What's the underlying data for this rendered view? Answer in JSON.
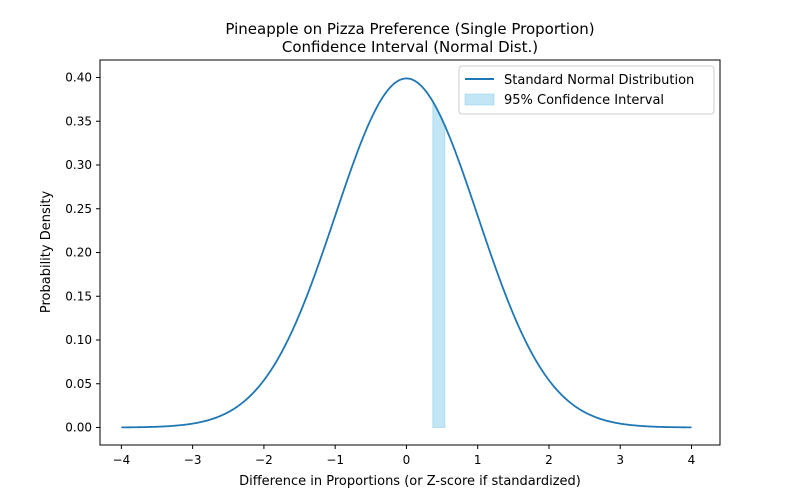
{
  "title_line1": "Pineapple on Pizza Preference (Single Proportion)",
  "title_line2": "Confidence Interval (Normal Dist.)",
  "chart_data": {
    "type": "line",
    "title": "Pineapple on Pizza Preference (Single Proportion)\nConfidence Interval (Normal Dist.)",
    "xlabel": "Difference in Proportions (or Z-score if standardized)",
    "ylabel": "Probability Density",
    "xlim": [
      -4.3,
      4.4
    ],
    "ylim": [
      -0.02,
      0.42
    ],
    "x_ticks": [
      -4,
      -3,
      -2,
      -1,
      0,
      1,
      2,
      3,
      4
    ],
    "x_tick_labels": [
      "−4",
      "−3",
      "−2",
      "−1",
      "0",
      "1",
      "2",
      "3",
      "4"
    ],
    "y_ticks": [
      0.0,
      0.05,
      0.1,
      0.15,
      0.2,
      0.25,
      0.3,
      0.35,
      0.4
    ],
    "y_tick_labels": [
      "0.00",
      "0.05",
      "0.10",
      "0.15",
      "0.20",
      "0.25",
      "0.30",
      "0.35",
      "0.40"
    ],
    "grid": false,
    "legend_position": "top-right",
    "series": [
      {
        "name": "Standard Normal Distribution",
        "kind": "line",
        "color": "#1f77b4",
        "function": "standard normal pdf",
        "x_range": [
          -4,
          4
        ],
        "sample_points": [
          {
            "x": -4,
            "y": 0.0001
          },
          {
            "x": -3,
            "y": 0.0044
          },
          {
            "x": -2,
            "y": 0.054
          },
          {
            "x": -1,
            "y": 0.242
          },
          {
            "x": 0,
            "y": 0.3989
          },
          {
            "x": 1,
            "y": 0.242
          },
          {
            "x": 2,
            "y": 0.054
          },
          {
            "x": 3,
            "y": 0.0044
          },
          {
            "x": 4,
            "y": 0.0001
          }
        ]
      },
      {
        "name": "95% Confidence Interval",
        "kind": "area",
        "color": "#87ceeb",
        "opacity": 0.5,
        "x_range": [
          0.37,
          0.54
        ]
      }
    ]
  }
}
